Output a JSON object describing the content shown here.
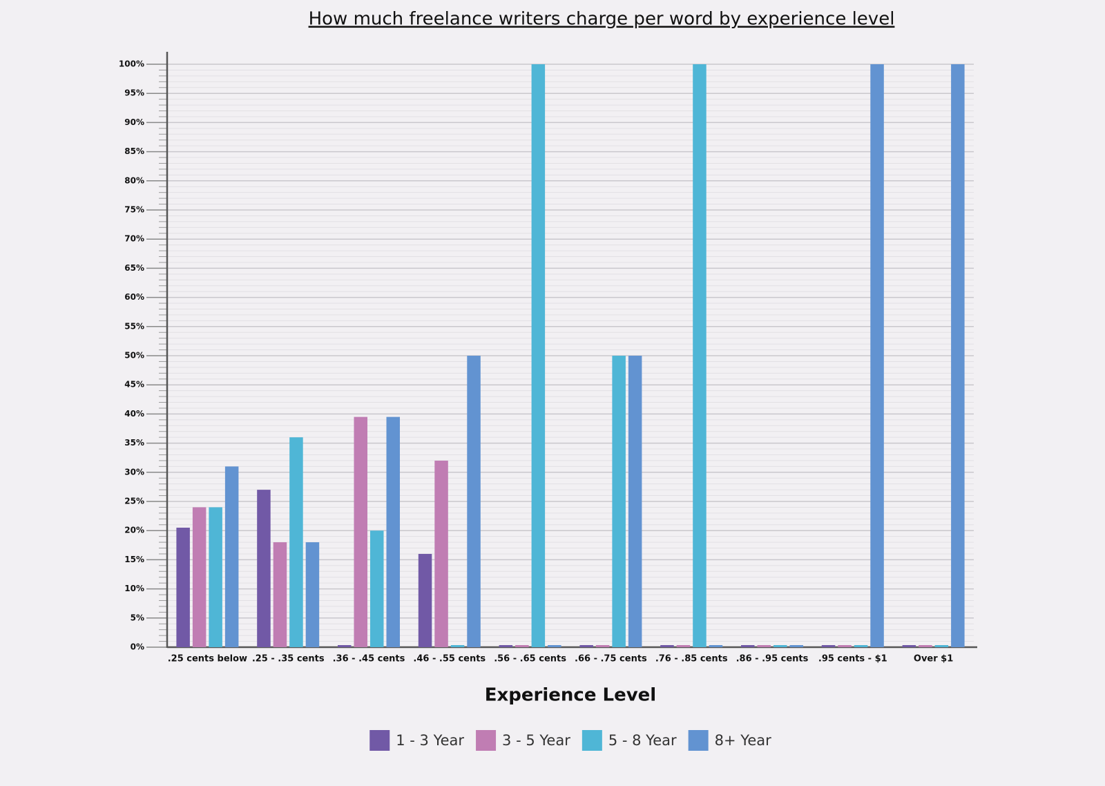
{
  "chart_data": {
    "type": "bar",
    "title": "How much freelance writers charge per word by experience level",
    "x_label": "Experience Level",
    "categories": [
      ".25 cents below",
      ".25 - .35 cents",
      ".36 - .45 cents",
      ".46 - .55 cents",
      ".56 - .65 cents",
      ".66 - .75 cents",
      ".76 - .85 cents",
      ".86 - .95 cents",
      ".95 cents - $1",
      "Over $1"
    ],
    "series": [
      {
        "name": "1 - 3 Year",
        "color": "#7159a6",
        "values": [
          20.5,
          27,
          0,
          16,
          0,
          0,
          0,
          0,
          0,
          0
        ]
      },
      {
        "name": "3 - 5 Year",
        "color": "#c07db3",
        "values": [
          24,
          18,
          39.5,
          32,
          0,
          0,
          0,
          0,
          0,
          0
        ]
      },
      {
        "name": "5 - 8 Year",
        "color": "#4fb6d6",
        "values": [
          24,
          36,
          20,
          0,
          100,
          50,
          100,
          0,
          0,
          0
        ]
      },
      {
        "name": "8+ Year",
        "color": "#6293d1",
        "values": [
          31,
          18,
          39.5,
          50,
          0,
          50,
          0,
          0,
          100,
          100
        ]
      }
    ],
    "ylim": [
      0,
      100
    ],
    "yticks": [
      {
        "value": 0,
        "label": "0%"
      },
      {
        "value": 5,
        "label": "5%"
      },
      {
        "value": 10,
        "label": "10%"
      },
      {
        "value": 15,
        "label": "15%"
      },
      {
        "value": 20,
        "label": "20%"
      },
      {
        "value": 25,
        "label": "25%"
      },
      {
        "value": 30,
        "label": "30%"
      },
      {
        "value": 35,
        "label": "35%"
      },
      {
        "value": 40,
        "label": "40%"
      },
      {
        "value": 45,
        "label": "45%"
      },
      {
        "value": 50,
        "label": "50%"
      },
      {
        "value": 55,
        "label": "55%"
      },
      {
        "value": 60,
        "label": "60%"
      },
      {
        "value": 65,
        "label": "65%"
      },
      {
        "value": 70,
        "label": "70%"
      },
      {
        "value": 75,
        "label": "75%"
      },
      {
        "value": 80,
        "label": "80%"
      },
      {
        "value": 85,
        "label": "85%"
      },
      {
        "value": 90,
        "label": "90%"
      },
      {
        "value": 95,
        "label": "95%"
      },
      {
        "value": 100,
        "label": "100%"
      }
    ],
    "grid": true,
    "legend": "bottom"
  }
}
